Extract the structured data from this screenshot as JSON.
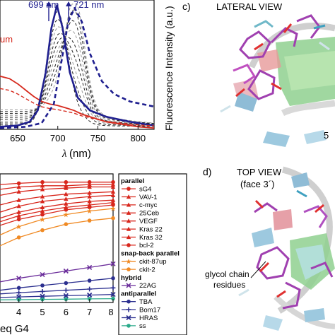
{
  "panel_top": {
    "annotations": {
      "peak1": "699 nm",
      "peak2": "721 nm",
      "left_frag": "um"
    },
    "ylabel": "Fluorescence Intensity (a.u.)",
    "xlabel_symbol": "λ",
    "xlabel_unit": " (nm)",
    "xticks": [
      "650",
      "700",
      "750",
      "800"
    ],
    "colors": {
      "blue": "#1f1f8f",
      "red": "#d62a1e",
      "dash": "#222222",
      "grey": "#9a9a9a"
    }
  },
  "panel_bottom": {
    "xlabel": "eq G4",
    "xticks": [
      "4",
      "5",
      "6",
      "7",
      "8"
    ]
  },
  "legend": {
    "groups": [
      {
        "heading": "parallel",
        "items": [
          {
            "label": "sG4",
            "color": "#d8261c",
            "marker": "circle"
          },
          {
            "label": "VAV-1",
            "color": "#d8261c",
            "marker": "triangle"
          },
          {
            "label": "c-myc",
            "color": "#d8261c",
            "marker": "triangle"
          },
          {
            "label": "25Ceb",
            "color": "#d8261c",
            "marker": "triangle"
          },
          {
            "label": "VEGF",
            "color": "#d8261c",
            "marker": "triangle"
          },
          {
            "label": "Kras 22",
            "color": "#d8261c",
            "marker": "triangle"
          },
          {
            "label": "Kras 32",
            "color": "#d8261c",
            "marker": "triangle"
          },
          {
            "label": "bcl-2",
            "color": "#d8261c",
            "marker": "circle"
          }
        ]
      },
      {
        "heading": "snap-back parallel",
        "items": [
          {
            "label": "ckit-87up",
            "color": "#f08a24",
            "marker": "star"
          },
          {
            "label": "ckit-2",
            "color": "#f08a24",
            "marker": "circle"
          }
        ]
      },
      {
        "heading": "hybrid",
        "items": [
          {
            "label": "22AG",
            "color": "#6a2c9a",
            "marker": "cross"
          }
        ]
      },
      {
        "heading": "antiparallel",
        "items": [
          {
            "label": "TBA",
            "color": "#2b2f8f",
            "marker": "circle"
          },
          {
            "label": "Bom17",
            "color": "#2b2f8f",
            "marker": "plus"
          },
          {
            "label": "HRAS",
            "color": "#2b2f8f",
            "marker": "x"
          },
          {
            "label": "ss",
            "color": "#2aaa8a",
            "marker": "circle"
          }
        ]
      }
    ]
  },
  "panel_c": {
    "letter": "c)",
    "title": "LATERAL VIEW",
    "frag": "5"
  },
  "panel_d": {
    "letter": "d)",
    "title_line1": "TOP VIEW",
    "title_line2": "(face 3´)",
    "callout_line1": "glycol chain",
    "callout_line2": "residues"
  },
  "chart_data": [
    {
      "type": "line",
      "title": "",
      "xlabel": "λ (nm)",
      "ylabel": "Fluorescence Intensity (a.u.)",
      "xlim": [
        628,
        820
      ],
      "x_ticks": [
        650,
        700,
        750,
        800
      ],
      "grid": false,
      "annotations": [
        "699 nm",
        "721 nm"
      ],
      "series": [
        {
          "x": [
            628,
            640,
            650,
            660,
            670,
            680,
            690,
            699,
            710,
            720,
            730,
            745,
            760,
            780,
            800,
            820
          ],
          "y": [
            0.42,
            0.4,
            0.36,
            0.31,
            0.26,
            0.22,
            0.2,
            0.19,
            0.17,
            0.15,
            0.12,
            0.09,
            0.06,
            0.04,
            0.02,
            0.01
          ]
        },
        {
          "x": [
            628,
            650,
            665,
            675,
            685,
            692,
            699,
            706,
            715,
            725,
            740,
            760,
            790,
            820
          ],
          "y": [
            0.02,
            0.03,
            0.06,
            0.15,
            0.45,
            0.8,
            0.98,
            0.8,
            0.45,
            0.25,
            0.15,
            0.1,
            0.06,
            0.03
          ]
        },
        {
          "x": [
            628,
            660,
            680,
            695,
            705,
            713,
            721,
            730,
            740,
            755,
            770,
            790,
            820
          ],
          "y": [
            0.01,
            0.02,
            0.05,
            0.2,
            0.55,
            0.85,
            0.96,
            0.85,
            0.6,
            0.38,
            0.28,
            0.22,
            0.18
          ]
        }
      ]
    },
    {
      "type": "line",
      "title": "",
      "xlabel": "eq G4",
      "ylabel": "",
      "xlim": [
        3.2,
        8
      ],
      "x_ticks": [
        4,
        5,
        6,
        7,
        8
      ],
      "grid": false,
      "legend": "right",
      "series": [
        {
          "name": "sG4",
          "x": [
            3.2,
            4,
            5,
            6,
            7,
            8
          ],
          "y": [
            0.97,
            0.98,
            0.99,
            0.99,
            0.99,
            0.99
          ]
        },
        {
          "name": "VAV-1",
          "x": [
            3.2,
            4,
            5,
            6,
            7,
            8
          ],
          "y": [
            0.93,
            0.95,
            0.96,
            0.96,
            0.97,
            0.97
          ]
        },
        {
          "name": "c-myc",
          "x": [
            3.2,
            4,
            5,
            6,
            7,
            8
          ],
          "y": [
            0.88,
            0.91,
            0.93,
            0.94,
            0.95,
            0.95
          ]
        },
        {
          "name": "25Ceb",
          "x": [
            3.2,
            4,
            5,
            6,
            7,
            8
          ],
          "y": [
            0.8,
            0.84,
            0.87,
            0.89,
            0.9,
            0.91
          ]
        },
        {
          "name": "VEGF",
          "x": [
            3.2,
            4,
            5,
            6,
            7,
            8
          ],
          "y": [
            0.74,
            0.79,
            0.83,
            0.85,
            0.87,
            0.88
          ]
        },
        {
          "name": "Kras 22",
          "x": [
            3.2,
            4,
            5,
            6,
            7,
            8
          ],
          "y": [
            0.69,
            0.74,
            0.78,
            0.81,
            0.83,
            0.84
          ]
        },
        {
          "name": "Kras 32",
          "x": [
            3.2,
            4,
            5,
            6,
            7,
            8
          ],
          "y": [
            0.66,
            0.71,
            0.75,
            0.78,
            0.8,
            0.82
          ]
        },
        {
          "name": "bcl-2",
          "x": [
            3.2,
            4,
            5,
            6,
            7,
            8
          ],
          "y": [
            0.63,
            0.68,
            0.72,
            0.76,
            0.78,
            0.8
          ]
        },
        {
          "name": "ckit-87up",
          "x": [
            3.2,
            4,
            5,
            6,
            7,
            8
          ],
          "y": [
            0.55,
            0.62,
            0.68,
            0.72,
            0.75,
            0.77
          ]
        },
        {
          "name": "ckit-2",
          "x": [
            3.2,
            4,
            5,
            6,
            7,
            8
          ],
          "y": [
            0.46,
            0.53,
            0.59,
            0.64,
            0.67,
            0.69
          ]
        },
        {
          "name": "22AG",
          "x": [
            3.2,
            4,
            5,
            6,
            7,
            8
          ],
          "y": [
            0.16,
            0.19,
            0.22,
            0.25,
            0.28,
            0.31
          ]
        },
        {
          "name": "TBA",
          "x": [
            3.2,
            4,
            5,
            6,
            7,
            8
          ],
          "y": [
            0.09,
            0.11,
            0.13,
            0.15,
            0.17,
            0.19
          ]
        },
        {
          "name": "Bom17",
          "x": [
            3.2,
            4,
            5,
            6,
            7,
            8
          ],
          "y": [
            0.06,
            0.07,
            0.08,
            0.09,
            0.1,
            0.11
          ]
        },
        {
          "name": "HRAS",
          "x": [
            3.2,
            4,
            5,
            6,
            7,
            8
          ],
          "y": [
            0.03,
            0.035,
            0.04,
            0.045,
            0.05,
            0.055
          ]
        },
        {
          "name": "ss",
          "x": [
            3.2,
            4,
            5,
            6,
            7,
            8
          ],
          "y": [
            0.01,
            0.012,
            0.014,
            0.016,
            0.018,
            0.02
          ]
        }
      ]
    }
  ]
}
